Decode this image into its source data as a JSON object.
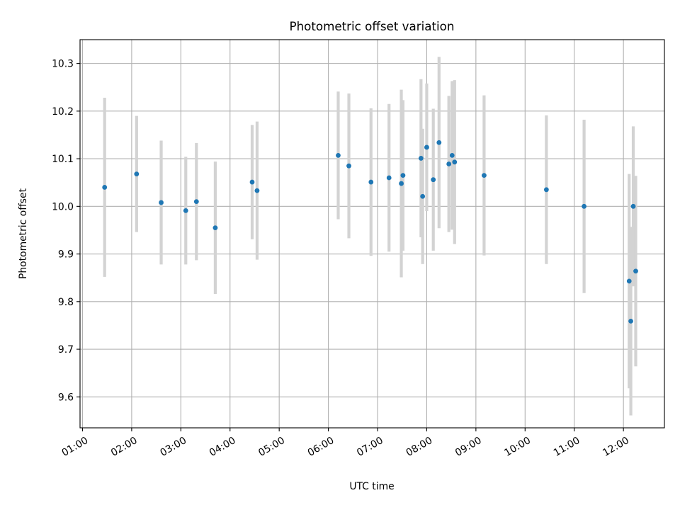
{
  "chart_data": {
    "type": "scatter",
    "title": "Photometric offset variation",
    "xlabel": "UTC time",
    "ylabel": "Photometric offset",
    "xlim": [
      "00:57",
      "12:50"
    ],
    "ylim": [
      9.535,
      10.35
    ],
    "x_ticks": [
      "01:00",
      "02:00",
      "03:00",
      "04:00",
      "05:00",
      "06:00",
      "07:00",
      "08:00",
      "09:00",
      "10:00",
      "11:00",
      "12:00"
    ],
    "y_ticks": [
      9.6,
      9.7,
      9.8,
      9.9,
      10.0,
      10.1,
      10.2,
      10.3
    ],
    "grid": true,
    "point_color": "#1f77b4",
    "errorbar_color": "#d3d3d3",
    "points": [
      {
        "x": "01:27",
        "y": 10.04,
        "err": 0.188
      },
      {
        "x": "02:06",
        "y": 10.068,
        "err": 0.122
      },
      {
        "x": "02:36",
        "y": 10.008,
        "err": 0.13
      },
      {
        "x": "03:06",
        "y": 9.991,
        "err": 0.113
      },
      {
        "x": "03:19",
        "y": 10.01,
        "err": 0.123
      },
      {
        "x": "03:42",
        "y": 9.955,
        "err": 0.139
      },
      {
        "x": "04:27",
        "y": 10.051,
        "err": 0.12
      },
      {
        "x": "04:33",
        "y": 10.033,
        "err": 0.145
      },
      {
        "x": "06:12",
        "y": 10.107,
        "err": 0.134
      },
      {
        "x": "06:25",
        "y": 10.085,
        "err": 0.152
      },
      {
        "x": "06:52",
        "y": 10.051,
        "err": 0.155
      },
      {
        "x": "07:14",
        "y": 10.06,
        "err": 0.155
      },
      {
        "x": "07:29",
        "y": 10.048,
        "err": 0.197
      },
      {
        "x": "07:31",
        "y": 10.065,
        "err": 0.158
      },
      {
        "x": "07:53",
        "y": 10.101,
        "err": 0.166
      },
      {
        "x": "07:55",
        "y": 10.021,
        "err": 0.142
      },
      {
        "x": "08:00",
        "y": 10.124,
        "err": 0.134
      },
      {
        "x": "08:08",
        "y": 10.056,
        "err": 0.149
      },
      {
        "x": "08:15",
        "y": 10.134,
        "err": 0.18
      },
      {
        "x": "08:27",
        "y": 10.089,
        "err": 0.143
      },
      {
        "x": "08:31",
        "y": 10.107,
        "err": 0.156
      },
      {
        "x": "08:34",
        "y": 10.093,
        "err": 0.172
      },
      {
        "x": "09:10",
        "y": 10.065,
        "err": 0.168
      },
      {
        "x": "10:26",
        "y": 10.035,
        "err": 0.156
      },
      {
        "x": "11:12",
        "y": 10.0,
        "err": 0.182
      },
      {
        "x": "12:07",
        "y": 9.843,
        "err": 0.225
      },
      {
        "x": "12:09",
        "y": 9.759,
        "err": 0.198
      },
      {
        "x": "12:12",
        "y": 10.0,
        "err": 0.168
      },
      {
        "x": "12:15",
        "y": 9.864,
        "err": 0.2
      }
    ]
  }
}
